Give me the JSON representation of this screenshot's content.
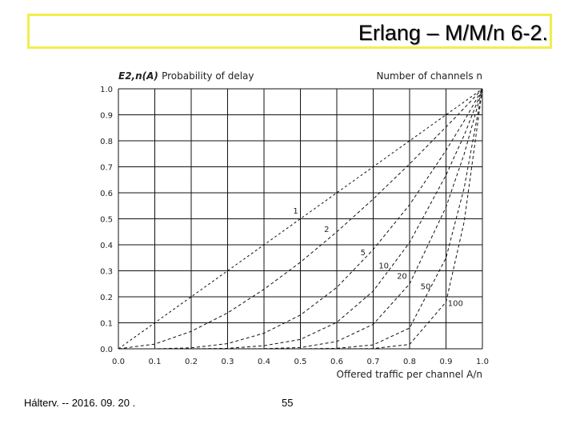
{
  "slide": {
    "title": "Erlang – M/M/n  6-2.",
    "footer_left": "Hálterv. -- 2016. 09. 20 .",
    "page_number": "55"
  },
  "chart_data": {
    "type": "line",
    "ylabel_symbol": "E2,n(A)",
    "ylabel": "Probability of delay",
    "legend_title": "Number of channels n",
    "xlabel": "Offered traffic per channel A/n",
    "xlim": [
      0.0,
      1.0
    ],
    "ylim": [
      0.0,
      1.0
    ],
    "grid": true,
    "x_ticks": [
      "0.0",
      "0.1",
      "0.2",
      "0.3",
      "0.4",
      "0.5",
      "0.6",
      "0.7",
      "0.8",
      "0.9",
      "1.0"
    ],
    "y_ticks": [
      "0.0",
      "0.1",
      "0.2",
      "0.3",
      "0.4",
      "0.5",
      "0.6",
      "0.7",
      "0.8",
      "0.9",
      "1.0"
    ],
    "x": [
      0.0,
      0.1,
      0.2,
      0.3,
      0.4,
      0.5,
      0.6,
      0.7,
      0.8,
      0.9,
      0.95,
      1.0
    ],
    "series": [
      {
        "name": "1",
        "values": [
          0.0,
          0.1,
          0.2,
          0.3,
          0.4,
          0.5,
          0.6,
          0.7,
          0.8,
          0.9,
          0.95,
          1.0
        ]
      },
      {
        "name": "2",
        "values": [
          0.0,
          0.018,
          0.067,
          0.138,
          0.229,
          0.333,
          0.45,
          0.576,
          0.711,
          0.853,
          0.926,
          1.0
        ]
      },
      {
        "name": "5",
        "values": [
          0.0,
          0.0001,
          0.0037,
          0.02,
          0.06,
          0.13,
          0.236,
          0.382,
          0.554,
          0.763,
          0.877,
          1.0
        ]
      },
      {
        "name": "10",
        "values": [
          0.0,
          0.0,
          0.0001,
          0.002,
          0.012,
          0.036,
          0.102,
          0.222,
          0.409,
          0.668,
          0.822,
          1.0
        ]
      },
      {
        "name": "20",
        "values": [
          0.0,
          0.0,
          0.0,
          0.0,
          0.0005,
          0.005,
          0.028,
          0.094,
          0.25,
          0.545,
          0.75,
          1.0
        ]
      },
      {
        "name": "50",
        "values": [
          0.0,
          0.0,
          0.0,
          0.0,
          0.0,
          0.0,
          0.002,
          0.015,
          0.08,
          0.35,
          0.62,
          1.0
        ]
      },
      {
        "name": "100",
        "values": [
          0.0,
          0.0,
          0.0,
          0.0,
          0.0,
          0.0,
          0.0,
          0.001,
          0.017,
          0.18,
          0.49,
          1.0
        ]
      }
    ],
    "curve_labels": [
      {
        "text": "1",
        "x": 0.48,
        "y": 0.52
      },
      {
        "text": "2",
        "x": 0.565,
        "y": 0.45
      },
      {
        "text": "5",
        "x": 0.665,
        "y": 0.36
      },
      {
        "text": "10",
        "x": 0.715,
        "y": 0.31
      },
      {
        "text": "20",
        "x": 0.765,
        "y": 0.27
      },
      {
        "text": "50",
        "x": 0.83,
        "y": 0.23
      },
      {
        "text": "100",
        "x": 0.905,
        "y": 0.165
      }
    ]
  }
}
